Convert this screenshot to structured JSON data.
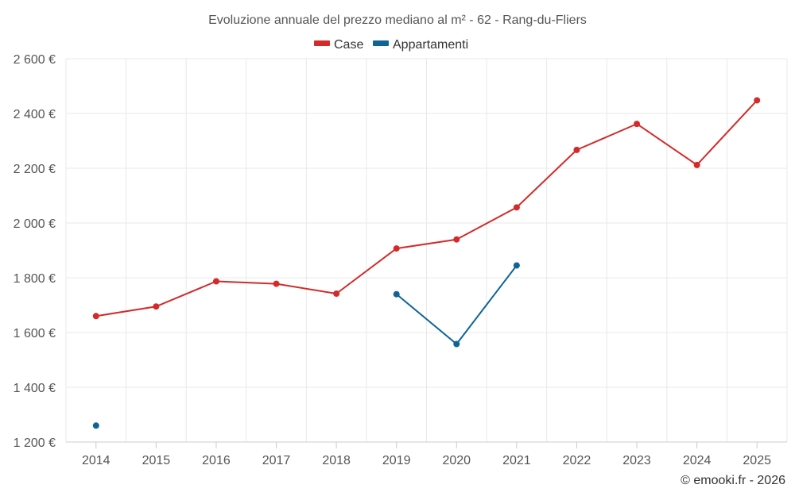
{
  "chart_data": {
    "type": "line",
    "title": "Evoluzione annuale del prezzo mediano al m² - 62 - Rang-du-Fliers",
    "categories": [
      "2014",
      "2015",
      "2016",
      "2017",
      "2018",
      "2019",
      "2020",
      "2021",
      "2022",
      "2023",
      "2024",
      "2025"
    ],
    "y_tick_labels": [
      "1 200 €",
      "1 400 €",
      "1 600 €",
      "1 800 €",
      "2 000 €",
      "2 200 €",
      "2 400 €",
      "2 600 €"
    ],
    "y_ticks": [
      1200,
      1400,
      1600,
      1800,
      2000,
      2200,
      2400,
      2600
    ],
    "ylim": [
      1200,
      2600
    ],
    "xlabel": "",
    "ylabel": "",
    "grid": true,
    "legend_position": "top-center",
    "series": [
      {
        "name": "Case",
        "color": "#d42a2a",
        "values": [
          1660,
          1695,
          1787,
          1778,
          1742,
          1907,
          1940,
          2057,
          2267,
          2362,
          2212,
          2448
        ]
      },
      {
        "name": "Appartamenti",
        "color": "#0f6496",
        "values": [
          1260,
          null,
          null,
          null,
          null,
          1740,
          1558,
          1845,
          null,
          null,
          null,
          null
        ]
      }
    ],
    "credit": "© emooki.fr - 2026"
  }
}
